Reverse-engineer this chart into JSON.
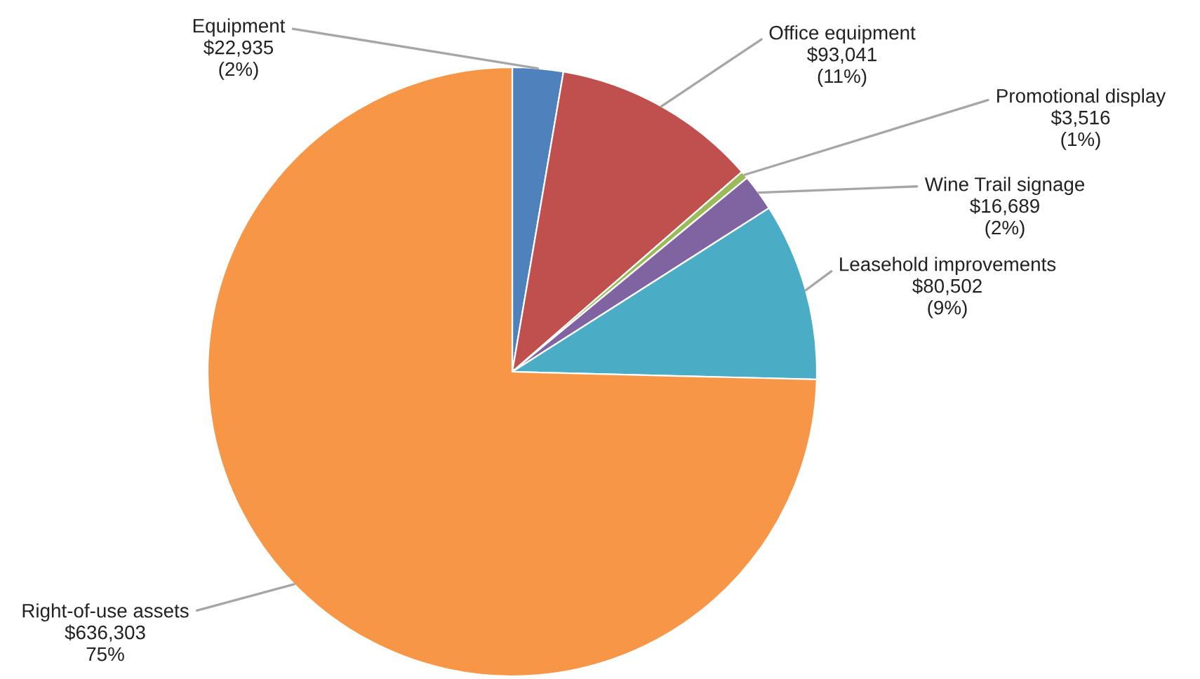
{
  "chart_data": {
    "type": "pie",
    "categories": [
      "Equipment",
      "Office equipment",
      "Promotional display",
      "Wine Trail signage",
      "Leasehold improvements",
      "Right-of-use assets"
    ],
    "values": [
      22935,
      93041,
      3516,
      16689,
      80502,
      636303
    ],
    "colors": [
      "#4f81bd",
      "#c0504d",
      "#9bbb59",
      "#8064a2",
      "#4bacc6",
      "#f79646"
    ],
    "value_labels": [
      "$22,935\n(2%)",
      "$93,041\n(11%)",
      "$3,516\n(1%)",
      "$16,689\n(2%)",
      "$80,502\n(9%)",
      "$636,303\n75%"
    ],
    "legend": false
  }
}
